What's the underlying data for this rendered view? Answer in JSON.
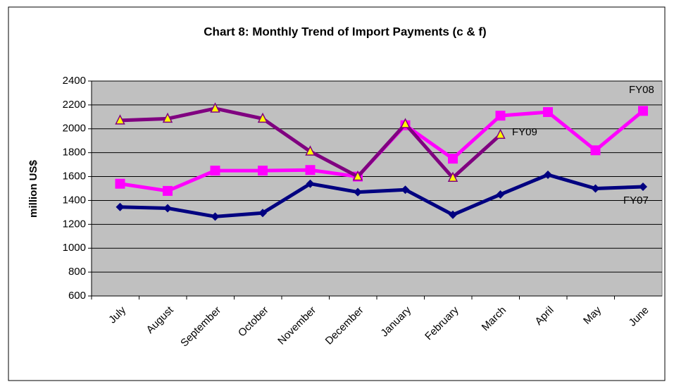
{
  "chart_data": {
    "type": "line",
    "title": "Chart 8: Monthly Trend of Import Payments (c & f)",
    "y_label": "million US$",
    "categories": [
      "July",
      "August",
      "September",
      "October",
      "November",
      "December",
      "January",
      "February",
      "March",
      "April",
      "May",
      "June"
    ],
    "series": [
      {
        "name": "FY07",
        "color": "#000080",
        "marker": "diamond",
        "values": [
          1345,
          1335,
          1265,
          1295,
          1540,
          1470,
          1490,
          1280,
          1450,
          1615,
          1500,
          1515
        ]
      },
      {
        "name": "FY08",
        "color": "#ff00ff",
        "marker": "square",
        "values": [
          1540,
          1480,
          1650,
          1650,
          1655,
          1600,
          2030,
          1750,
          2110,
          2140,
          1820,
          2150
        ]
      },
      {
        "name": "FY09",
        "color": "#800080",
        "marker": "triangle",
        "values": [
          2070,
          2085,
          2170,
          2085,
          1810,
          1600,
          2040,
          1590,
          1950,
          null,
          null,
          null
        ]
      }
    ],
    "ylim": [
      600,
      2400
    ],
    "yticks": [
      600,
      800,
      1000,
      1200,
      1400,
      1600,
      1800,
      2000,
      2200,
      2400
    ],
    "grid": true
  }
}
